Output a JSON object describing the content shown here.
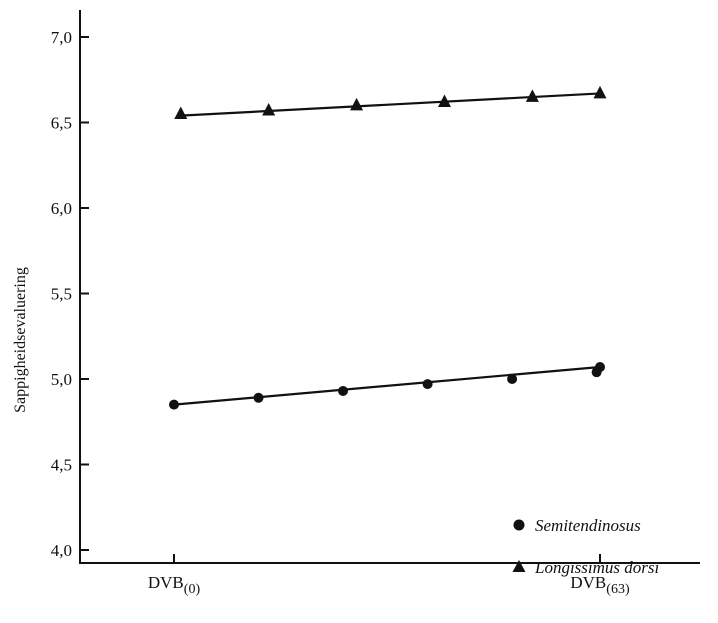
{
  "chart_data": {
    "type": "line",
    "title": "",
    "ylabel": "Sappigheidsevaluering",
    "xlabel": "",
    "ylim": [
      4.0,
      7.0
    ],
    "y_ticks": [
      "4,0",
      "4,5",
      "5,0",
      "5,5",
      "6,0",
      "6,5",
      "7,0"
    ],
    "y_tick_values": [
      4.0,
      4.5,
      5.0,
      5.5,
      6.0,
      6.5,
      7.0
    ],
    "x_tick_labels": [
      {
        "main": "DVB",
        "sub": "(0)",
        "x": 0
      },
      {
        "main": "DVB",
        "sub": "(63)",
        "x": 63
      }
    ],
    "xlim": [
      -14,
      68
    ],
    "grid": false,
    "legend_position": "bottom-right",
    "series": [
      {
        "name": "Semitendinosus",
        "marker": "circle",
        "x": [
          0,
          12.5,
          25,
          37.5,
          50,
          62.5,
          63
        ],
        "y": [
          4.85,
          4.89,
          4.93,
          4.97,
          5.0,
          5.04,
          5.07
        ],
        "fit_line": {
          "x": [
            0,
            63
          ],
          "y": [
            4.85,
            5.07
          ]
        }
      },
      {
        "name": "Longissimus dorsi",
        "marker": "triangle",
        "x": [
          1,
          14,
          27,
          40,
          53,
          63
        ],
        "y": [
          6.55,
          6.57,
          6.6,
          6.62,
          6.65,
          6.67
        ],
        "fit_line": {
          "x": [
            1,
            63
          ],
          "y": [
            6.54,
            6.67
          ]
        }
      }
    ]
  }
}
